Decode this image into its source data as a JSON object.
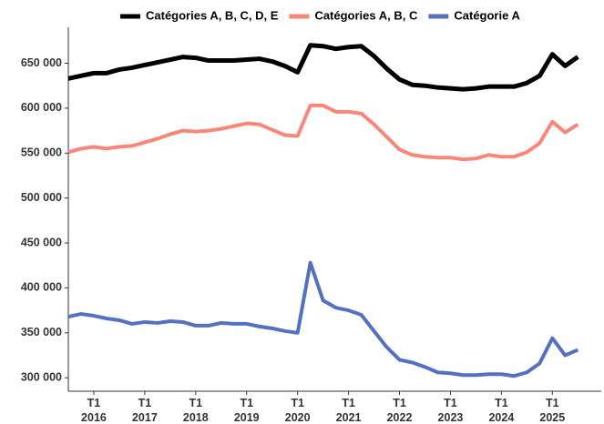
{
  "chart_data": {
    "type": "line",
    "x": [
      2015.5,
      2015.75,
      2016,
      2016.25,
      2016.5,
      2016.75,
      2017,
      2017.25,
      2017.5,
      2017.75,
      2018,
      2018.25,
      2018.5,
      2018.75,
      2019,
      2019.25,
      2019.5,
      2019.75,
      2020,
      2020.25,
      2020.5,
      2020.75,
      2021,
      2021.25,
      2021.5,
      2021.75,
      2022,
      2022.25,
      2022.5,
      2022.75,
      2023,
      2023.25,
      2023.5,
      2023.75,
      2024,
      2024.25,
      2024.5,
      2024.75,
      2025,
      2025.25,
      2025.5
    ],
    "series": [
      {
        "name": "Catégories A, B, C, D, E",
        "color": "#000000",
        "values": [
          633000,
          636000,
          639000,
          639000,
          643000,
          645000,
          648000,
          651000,
          654000,
          657000,
          656000,
          653000,
          653000,
          653000,
          654000,
          655000,
          652000,
          647000,
          640000,
          670000,
          669000,
          666000,
          668000,
          669000,
          658000,
          644000,
          632000,
          626000,
          625000,
          623000,
          622000,
          621000,
          622000,
          624000,
          624000,
          624000,
          628000,
          636000,
          660000,
          647000,
          657000
        ]
      },
      {
        "name": "Catégories A, B, C",
        "color": "#f8877a",
        "values": [
          551000,
          555000,
          557000,
          555000,
          557000,
          558000,
          562000,
          566000,
          571000,
          575000,
          574000,
          575000,
          577000,
          580000,
          583000,
          582000,
          576000,
          570000,
          569000,
          603000,
          603000,
          596000,
          596000,
          594000,
          582000,
          568000,
          554000,
          548000,
          546000,
          545000,
          545000,
          543000,
          544000,
          548000,
          546000,
          546000,
          551000,
          561000,
          585000,
          573000,
          582000
        ]
      },
      {
        "name": "Catégorie A",
        "color": "#5470c0",
        "values": [
          368000,
          371000,
          369000,
          366000,
          364000,
          360000,
          362000,
          361000,
          363000,
          362000,
          358000,
          358000,
          361000,
          360000,
          360000,
          357000,
          355000,
          352000,
          350000,
          428000,
          386000,
          378000,
          375000,
          370000,
          352000,
          334000,
          320000,
          317000,
          312000,
          306000,
          305000,
          303000,
          303000,
          304000,
          304000,
          302000,
          306000,
          316000,
          344000,
          325000,
          331000
        ]
      }
    ],
    "xlim": [
      2015.5,
      2025.96
    ],
    "xticks": [
      {
        "value": 2016,
        "label": "T1 2016"
      },
      {
        "value": 2017,
        "label": "T1 2017"
      },
      {
        "value": 2018,
        "label": "T1 2018"
      },
      {
        "value": 2019,
        "label": "T1 2019"
      },
      {
        "value": 2020,
        "label": "T1 2020"
      },
      {
        "value": 2021,
        "label": "T1 2021"
      },
      {
        "value": 2022,
        "label": "T1 2022"
      },
      {
        "value": 2023,
        "label": "T1 2023"
      },
      {
        "value": 2024,
        "label": "T1 2024"
      },
      {
        "value": 2025,
        "label": "T1 2025"
      }
    ],
    "ylim": [
      285000,
      690000
    ],
    "yticks": [
      {
        "value": 300000,
        "label": "300 000"
      },
      {
        "value": 350000,
        "label": "350 000"
      },
      {
        "value": 400000,
        "label": "400 000"
      },
      {
        "value": 450000,
        "label": "450 000"
      },
      {
        "value": 500000,
        "label": "500 000"
      },
      {
        "value": 550000,
        "label": "550 000"
      },
      {
        "value": 600000,
        "label": "600 000"
      },
      {
        "value": 650000,
        "label": "650 000"
      }
    ],
    "legend": "top",
    "grid": false
  }
}
